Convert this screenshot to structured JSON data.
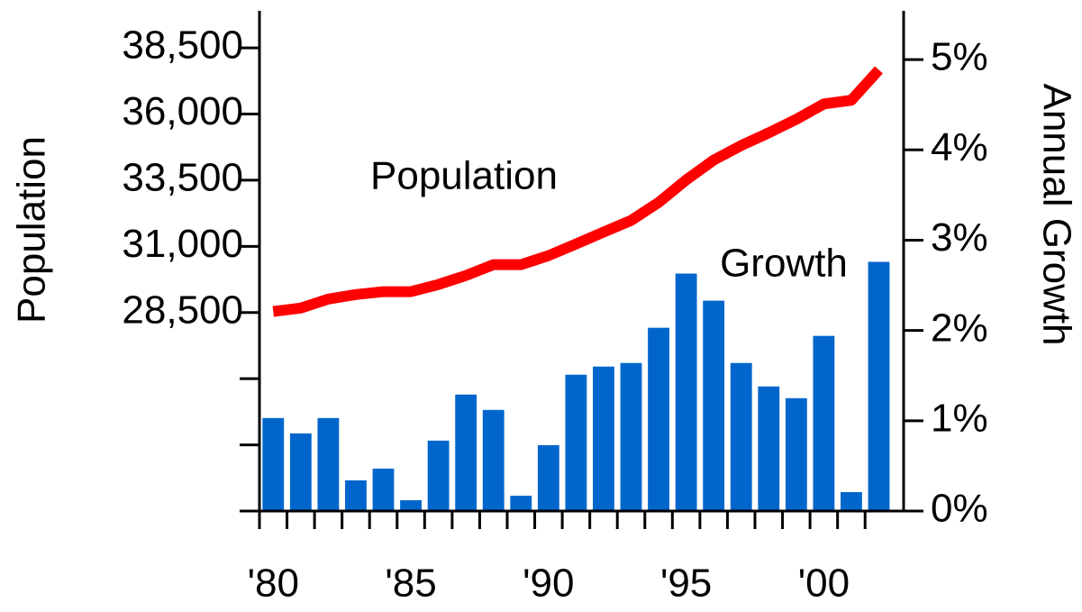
{
  "chart_data": {
    "type": "bar_line",
    "annotations": [
      "Population",
      "Growth"
    ],
    "ylabel": "Population",
    "y2label": "Annual Growth",
    "x": [
      1980,
      1981,
      1982,
      1983,
      1984,
      1985,
      1986,
      1987,
      1988,
      1989,
      1990,
      1991,
      1992,
      1993,
      1994,
      1995,
      1996,
      1997,
      1998,
      1999,
      2000,
      2001,
      2002
    ],
    "xlim": [
      1979.5,
      2002.9
    ],
    "xticks": [
      {
        "value": 1980,
        "label": "'80"
      },
      {
        "value": 1985,
        "label": "'85"
      },
      {
        "value": 1990,
        "label": "'90"
      },
      {
        "value": 1995,
        "label": "'95"
      },
      {
        "value": 2000,
        "label": "'00"
      }
    ],
    "ylim": [
      21000,
      39900
    ],
    "yticks": [
      {
        "value": 28500,
        "label": "28,500"
      },
      {
        "value": 31000,
        "label": "31,000"
      },
      {
        "value": 33500,
        "label": "33,500"
      },
      {
        "value": 36000,
        "label": "36,000"
      },
      {
        "value": 38500,
        "label": "38,500"
      }
    ],
    "yticks_minor": [
      21000,
      23500,
      26000
    ],
    "y2lim": [
      0,
      5.54
    ],
    "y2ticks": [
      {
        "value": 0,
        "label": "0%"
      },
      {
        "value": 1,
        "label": "1%"
      },
      {
        "value": 2,
        "label": "2%"
      },
      {
        "value": 3,
        "label": "3%"
      },
      {
        "value": 4,
        "label": "4%"
      },
      {
        "value": 5,
        "label": "5%"
      }
    ],
    "series": [
      {
        "name": "Growth",
        "type": "bar",
        "axis": "y2",
        "color": "#0066cc",
        "values": [
          1.03,
          0.86,
          1.03,
          0.34,
          0.47,
          0.12,
          0.78,
          1.29,
          1.12,
          0.17,
          0.73,
          1.51,
          1.6,
          1.64,
          2.03,
          2.63,
          2.33,
          1.64,
          1.38,
          1.25,
          1.94,
          0.21,
          2.76
        ]
      },
      {
        "name": "Population",
        "type": "line",
        "color": "#ff0000",
        "values": [
          28540,
          28670,
          29010,
          29180,
          29290,
          29290,
          29560,
          29900,
          30310,
          30310,
          30650,
          31090,
          31540,
          31980,
          32660,
          33510,
          34260,
          34810,
          35290,
          35800,
          36380,
          36520,
          37670
        ]
      }
    ]
  }
}
